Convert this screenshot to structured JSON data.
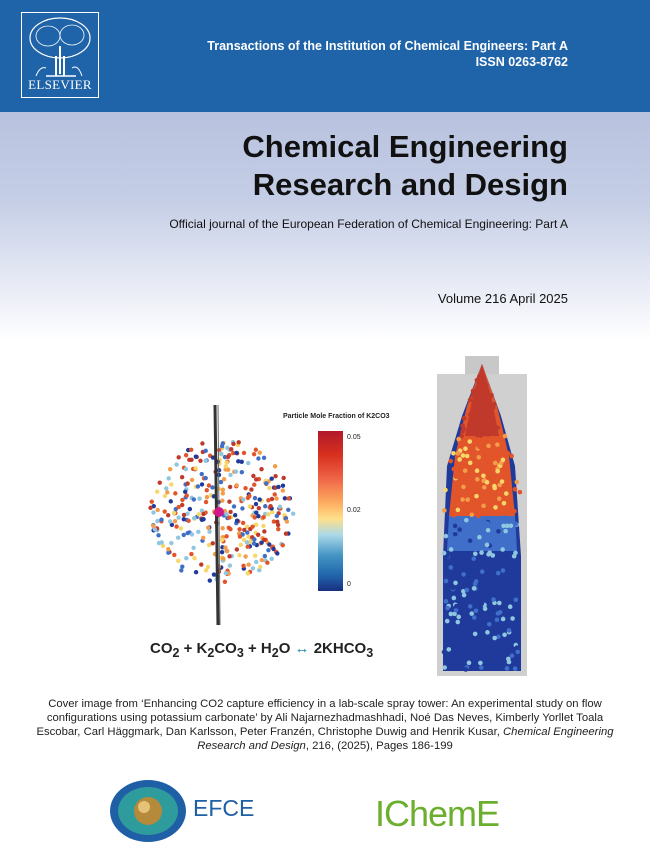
{
  "publisher": {
    "name": "ELSEVIER"
  },
  "header": {
    "series": "Transactions of the Institution of Chemical Engineers: Part A",
    "issn": "ISSN 0263-8762"
  },
  "journal": {
    "title_line1": "Chemical Engineering",
    "title_line2": "Research and Design",
    "subtitle": "Official journal of the European Federation of Chemical Engineering: Part A",
    "volume": "Volume 216 April 2025"
  },
  "figure": {
    "legend_title": "Particle Mole Fraction of K2CO3",
    "ticks": [
      "0.05",
      "0.02",
      "0"
    ],
    "equation": {
      "co": "CO",
      "sub2": "2",
      "plus1": " + K",
      "sub2b": "2",
      "co3": "CO",
      "sub3": "3",
      "plus2": " + H",
      "sub2c": "2",
      "o": "O ",
      "arrow": "↔",
      "product": " 2KHCO",
      "sub3b": "3"
    }
  },
  "caption": {
    "text": "Cover image from ‘Enhancing CO2 capture efficiency in a lab-scale spray tower: An experimental study on flow configurations using potassium carbonate’ by Ali Najarnezhadmashhadi, Noé Das Neves, Kimberly Yorllet Toala Escobar, Carl Häggmark, Dan Karlsson, Peter Franzén, Christophe Duwig and Henrik Kusar,",
    "journal_italic": "Chemical Engineering Research and Design",
    "tail": ", 216, (2025), Pages 186-199"
  },
  "logos": {
    "efce": "EFCE",
    "icheme": "IChemE"
  },
  "colors": {
    "header_blue": "#1f63a8",
    "efce_blue": "#1f5fa6",
    "icheme_green": "#6cae2e"
  }
}
